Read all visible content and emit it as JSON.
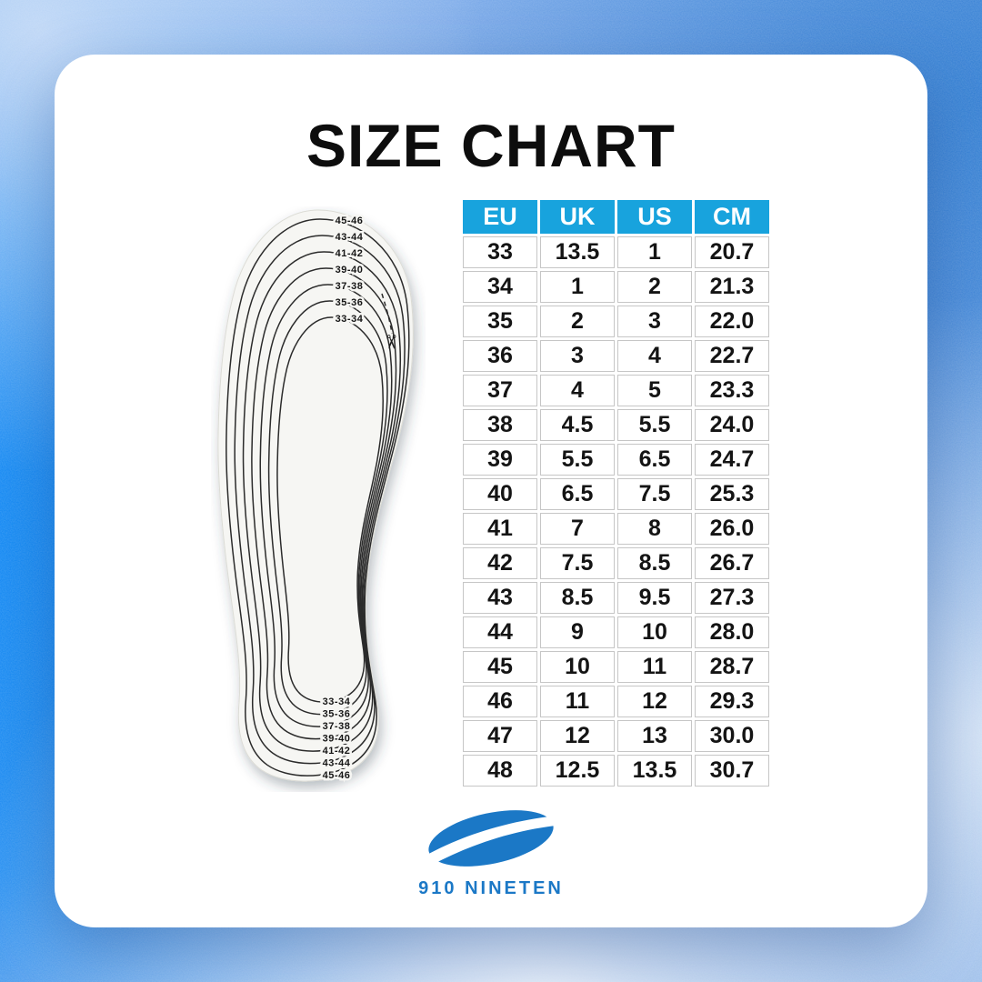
{
  "page": {
    "title": "SIZE CHART"
  },
  "insole": {
    "top_labels": [
      "45-46",
      "43-44",
      "41-42",
      "39-40",
      "37-38",
      "35-36",
      "33-34"
    ],
    "bottom_labels": [
      "33-34",
      "35-36",
      "37-38",
      "39-40",
      "41-42",
      "43-44",
      "45-46"
    ],
    "scissors_icon": "✂"
  },
  "size_table": {
    "headers": [
      "EU",
      "UK",
      "US",
      "CM"
    ],
    "rows": [
      [
        "33",
        "13.5",
        "1",
        "20.7"
      ],
      [
        "34",
        "1",
        "2",
        "21.3"
      ],
      [
        "35",
        "2",
        "3",
        "22.0"
      ],
      [
        "36",
        "3",
        "4",
        "22.7"
      ],
      [
        "37",
        "4",
        "5",
        "23.3"
      ],
      [
        "38",
        "4.5",
        "5.5",
        "24.0"
      ],
      [
        "39",
        "5.5",
        "6.5",
        "24.7"
      ],
      [
        "40",
        "6.5",
        "7.5",
        "25.3"
      ],
      [
        "41",
        "7",
        "8",
        "26.0"
      ],
      [
        "42",
        "7.5",
        "8.5",
        "26.7"
      ],
      [
        "43",
        "8.5",
        "9.5",
        "27.3"
      ],
      [
        "44",
        "9",
        "10",
        "28.0"
      ],
      [
        "45",
        "10",
        "11",
        "28.7"
      ],
      [
        "46",
        "11",
        "12",
        "29.3"
      ],
      [
        "47",
        "12",
        "13",
        "30.0"
      ],
      [
        "48",
        "12.5",
        "13.5",
        "30.7"
      ]
    ]
  },
  "brand": {
    "name": "910 NINETEN"
  },
  "colors": {
    "table_header_bg": "#18a3dd",
    "brand_blue": "#1b78c6",
    "accent_left_blue": "#0d87f4",
    "background_light_blue": "#b7d2f3"
  },
  "chart_data": {
    "type": "table",
    "title": "SIZE CHART",
    "columns": [
      "EU",
      "UK",
      "US",
      "CM"
    ],
    "rows": [
      [
        33,
        13.5,
        1,
        20.7
      ],
      [
        34,
        1,
        2,
        21.3
      ],
      [
        35,
        2,
        3,
        22.0
      ],
      [
        36,
        3,
        4,
        22.7
      ],
      [
        37,
        4,
        5,
        23.3
      ],
      [
        38,
        4.5,
        5.5,
        24.0
      ],
      [
        39,
        5.5,
        6.5,
        24.7
      ],
      [
        40,
        6.5,
        7.5,
        25.3
      ],
      [
        41,
        7,
        8,
        26.0
      ],
      [
        42,
        7.5,
        8.5,
        26.7
      ],
      [
        43,
        8.5,
        9.5,
        27.3
      ],
      [
        44,
        9,
        10,
        28.0
      ],
      [
        45,
        10,
        11,
        28.7
      ],
      [
        46,
        11,
        12,
        29.3
      ],
      [
        47,
        12,
        13,
        30.0
      ],
      [
        48,
        12.5,
        13.5,
        30.7
      ]
    ]
  }
}
